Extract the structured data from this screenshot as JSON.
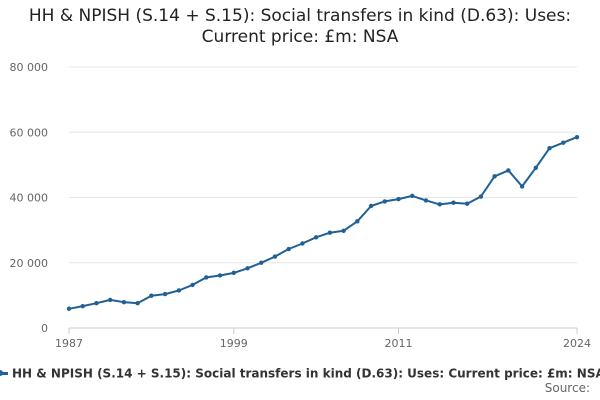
{
  "title": "HH & NPISH (S.14 + S.15): Social transfers in kind (D.63): Uses: Current price: £m: NSA",
  "source_label": "Source:",
  "colors": {
    "series": "#206095",
    "grid": "#e6e6e6",
    "axis": "#cccccc",
    "tick_text": "#666666"
  },
  "chart_data": {
    "type": "line",
    "title": "HH & NPISH (S.14 + S.15): Social transfers in kind (D.63): Uses: Current price: £m: NSA",
    "xlabel": "",
    "ylabel": "",
    "x_tick_labels": [
      "1987",
      "1999",
      "2011",
      "2024"
    ],
    "y_tick_labels": [
      "0",
      "20 000",
      "40 000",
      "60 000",
      "80 000"
    ],
    "y_ticks": [
      0,
      20000,
      40000,
      60000,
      80000
    ],
    "x_ticks": [
      1987,
      1999,
      2011,
      2024
    ],
    "xlim": [
      1987,
      2024
    ],
    "ylim": [
      0,
      80000
    ],
    "grid": "horizontal",
    "legend_position": "bottom",
    "series": [
      {
        "name": "HH & NPISH (S.14 + S.15): Social transfers in kind (D.63): Uses: Current price: £m: NSA",
        "x": [
          1987,
          1988,
          1989,
          1990,
          1991,
          1992,
          1993,
          1994,
          1995,
          1996,
          1997,
          1998,
          1999,
          2000,
          2001,
          2002,
          2003,
          2004,
          2005,
          2006,
          2007,
          2008,
          2009,
          2010,
          2011,
          2012,
          2013,
          2014,
          2015,
          2016,
          2017,
          2018,
          2019,
          2020,
          2021,
          2022,
          2023,
          2024
        ],
        "values": [
          5900,
          6700,
          7600,
          8600,
          7900,
          7600,
          9900,
          10400,
          11500,
          13200,
          15500,
          16100,
          16900,
          18300,
          20000,
          21900,
          24200,
          25900,
          27800,
          29200,
          29800,
          32700,
          37400,
          38800,
          39500,
          40500,
          39100,
          37900,
          38400,
          38100,
          40300,
          46500,
          48300,
          43400,
          49100,
          55100,
          56800,
          58500
        ]
      }
    ]
  }
}
